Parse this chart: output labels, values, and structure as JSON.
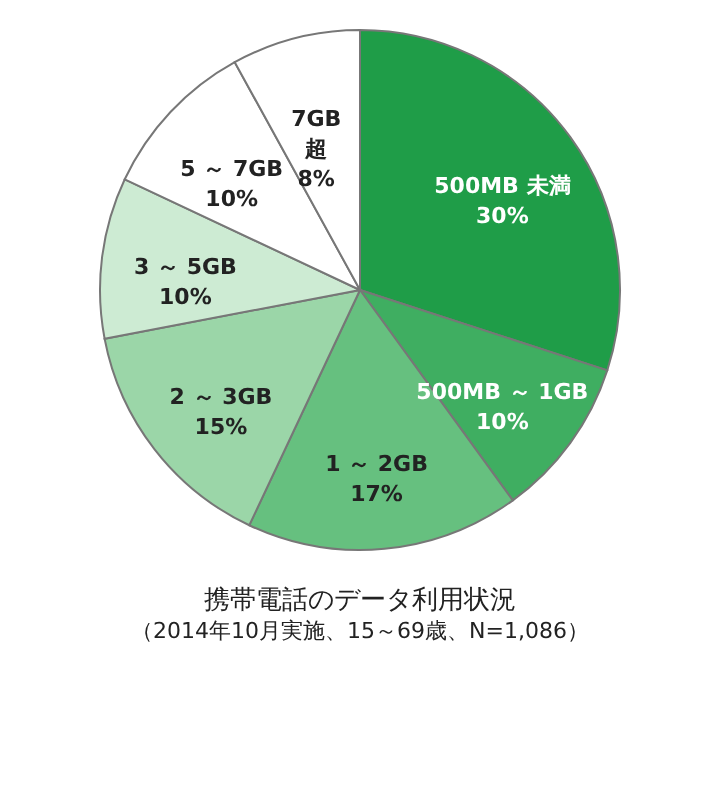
{
  "chart_data": {
    "type": "pie",
    "title": "携帯電話のデータ利用状況",
    "subtitle": "（2014年10月実施、15～69歳、N=1,086）",
    "categories": [
      "500MB 未満",
      "500MB ～ 1GB",
      "1 ～ 2GB",
      "2 ～ 3GB",
      "3 ～ 5GB",
      "5 ～ 7GB",
      "7GB 超"
    ],
    "values": [
      30,
      10,
      17,
      15,
      10,
      10,
      8
    ],
    "value_labels": [
      "30%",
      "10%",
      "17%",
      "15%",
      "10%",
      "10%",
      "8%"
    ],
    "colors": [
      "#1f9d48",
      "#3fae61",
      "#66c07f",
      "#9bd6a8",
      "#cdebd3",
      "#ffffff",
      "#ffffff"
    ]
  }
}
